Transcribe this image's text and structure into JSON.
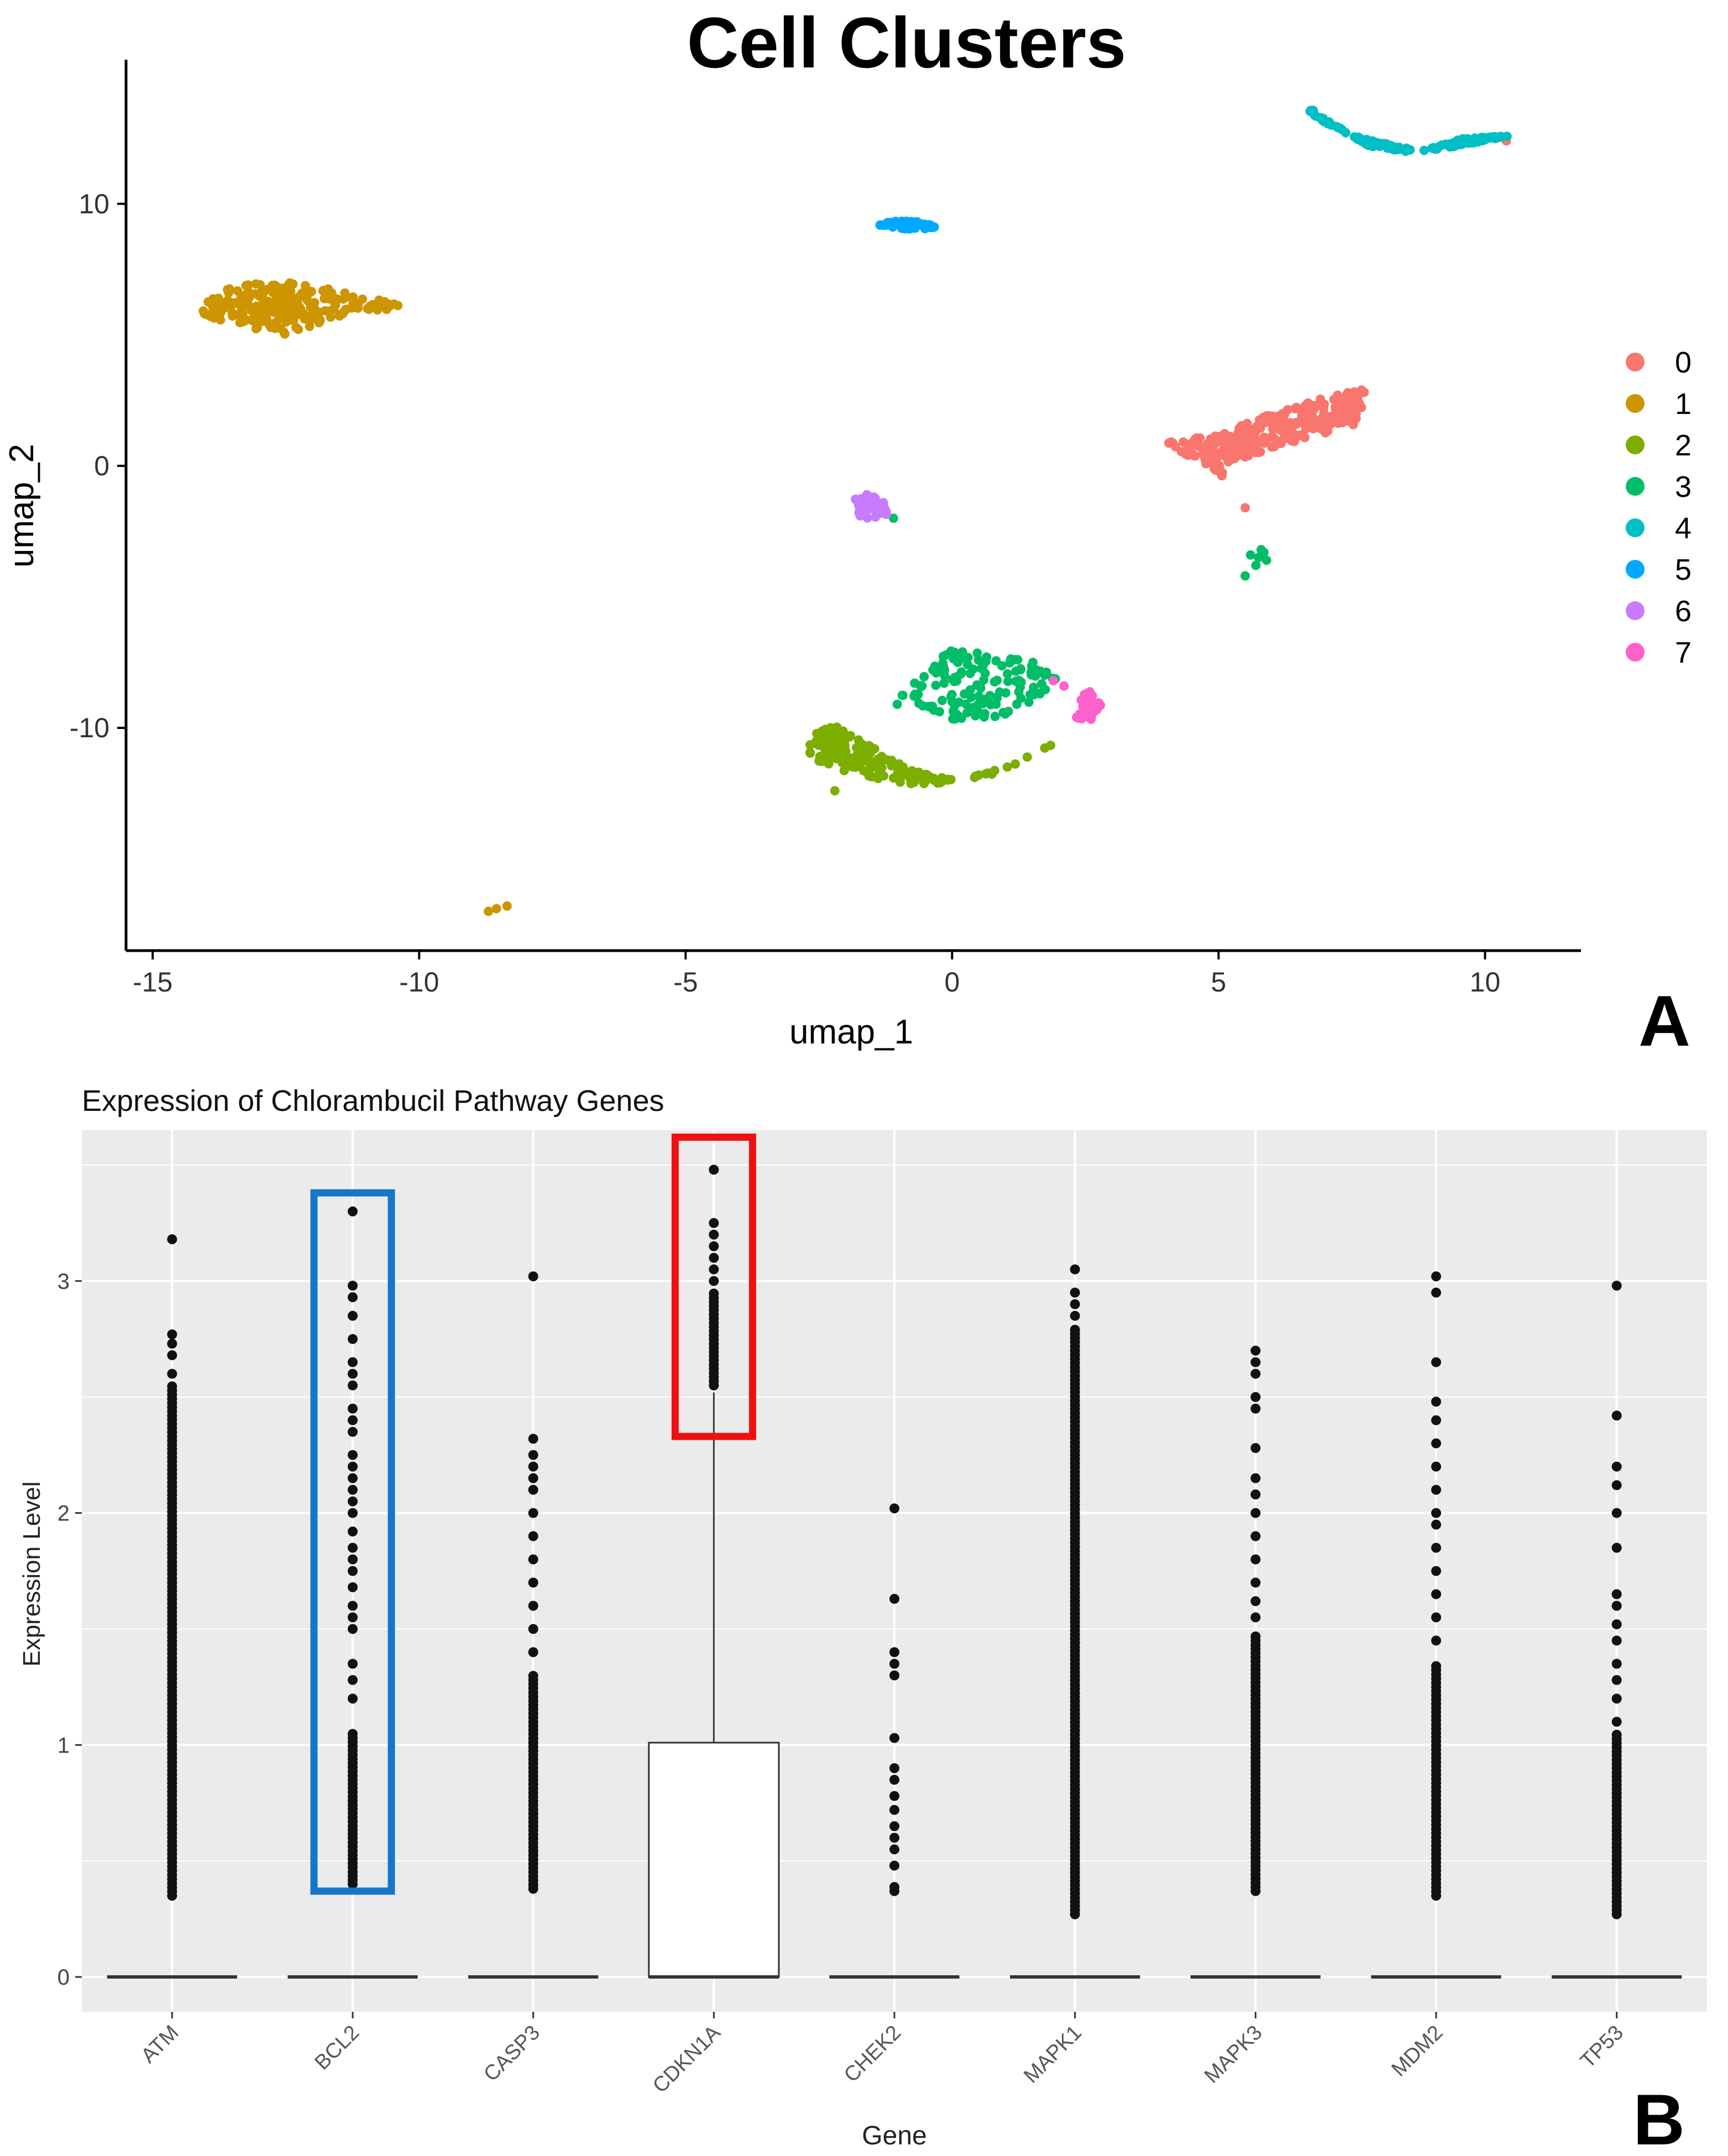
{
  "chart_data": [
    {
      "type": "scatter",
      "panel": "A",
      "title": "Cell Clusters",
      "xlabel": "umap_1",
      "ylabel": "umap_2",
      "xlim": [
        -15.5,
        11.8
      ],
      "ylim": [
        -18.5,
        15.5
      ],
      "xticks": [
        -15,
        -10,
        -5,
        0,
        5,
        10
      ],
      "yticks": [
        -10,
        0,
        10
      ],
      "grid": false,
      "legend_position": "right",
      "legend": [
        "0",
        "1",
        "2",
        "3",
        "4",
        "5",
        "6",
        "7"
      ],
      "clusters": [
        {
          "name": "0",
          "color": "#F8766D",
          "n": 280,
          "shape": [
            [
              4.0,
              0.9
            ],
            [
              5.0,
              1.2
            ],
            [
              6.0,
              2.0
            ],
            [
              7.0,
              2.6
            ],
            [
              7.8,
              3.0
            ],
            [
              7.6,
              1.6
            ],
            [
              6.2,
              0.8
            ],
            [
              5.0,
              0.0
            ],
            [
              5.3,
              -0.8
            ],
            [
              4.5,
              0.3
            ]
          ],
          "extra": [
            [
              8.1,
              12.3
            ],
            [
              10.4,
              12.4
            ],
            [
              5.5,
              -1.6
            ]
          ]
        },
        {
          "name": "1",
          "color": "#CD9600",
          "n": 220,
          "shape": [
            [
              -14.2,
              6.0
            ],
            [
              -13.4,
              7.0
            ],
            [
              -12.0,
              7.0
            ],
            [
              -11.0,
              6.4
            ],
            [
              -10.0,
              6.1
            ],
            [
              -11.2,
              5.8
            ],
            [
              -12.5,
              5.0
            ],
            [
              -13.8,
              5.5
            ]
          ],
          "extra": [
            [
              -8.55,
              -16.9
            ],
            [
              -8.35,
              -16.8
            ],
            [
              -8.7,
              -17.0
            ]
          ]
        },
        {
          "name": "2",
          "color": "#7CAE00",
          "n": 170,
          "shape": [
            [
              -2.8,
              -10.6
            ],
            [
              -2.3,
              -9.8
            ],
            [
              -1.6,
              -10.6
            ],
            [
              -0.8,
              -11.6
            ],
            [
              0.2,
              -12.0
            ],
            [
              1.2,
              -11.3
            ],
            [
              2.2,
              -10.3
            ],
            [
              0.8,
              -11.8
            ],
            [
              -0.6,
              -12.2
            ],
            [
              -1.8,
              -11.8
            ],
            [
              -2.6,
              -11.2
            ]
          ],
          "extra": [
            [
              -2.2,
              -12.4
            ]
          ]
        },
        {
          "name": "3",
          "color": "#00BE67",
          "n": 140,
          "shape": [
            [
              -1.1,
              -9.1
            ],
            [
              -0.6,
              -7.8
            ],
            [
              0.0,
              -7.0
            ],
            [
              1.0,
              -7.3
            ],
            [
              1.6,
              -7.4
            ],
            [
              2.0,
              -8.2
            ],
            [
              1.2,
              -9.5
            ],
            [
              0.2,
              -9.8
            ],
            [
              -0.5,
              -9.3
            ]
          ],
          "extra": [
            [
              5.6,
              -3.4
            ],
            [
              5.8,
              -3.2
            ],
            [
              5.9,
              -3.6
            ],
            [
              5.7,
              -3.8
            ],
            [
              5.5,
              -4.2
            ],
            [
              5.75,
              -3.5
            ],
            [
              5.85,
              -3.3
            ],
            [
              -1.1,
              -2.0
            ]
          ]
        },
        {
          "name": "4",
          "color": "#00BFC4",
          "n": 150,
          "shape": [
            [
              6.6,
              13.8
            ],
            [
              7.2,
              13.0
            ],
            [
              7.8,
              12.2
            ],
            [
              8.5,
              12.0
            ],
            [
              9.2,
              12.1
            ],
            [
              10.0,
              12.4
            ],
            [
              10.5,
              12.6
            ],
            [
              9.6,
              12.5
            ],
            [
              8.8,
              12.0
            ],
            [
              7.5,
              12.6
            ],
            [
              6.8,
              13.3
            ]
          ],
          "extra": []
        },
        {
          "name": "5",
          "color": "#00A9FF",
          "n": 60,
          "shape": [
            [
              -1.4,
              9.2
            ],
            [
              -1.0,
              9.4
            ],
            [
              -0.6,
              9.3
            ],
            [
              0.0,
              9.0
            ],
            [
              0.4,
              8.8
            ],
            [
              -0.2,
              9.1
            ],
            [
              -0.8,
              9.0
            ]
          ],
          "extra": []
        },
        {
          "name": "6",
          "color": "#C77CFF",
          "n": 45,
          "shape": [
            [
              -1.9,
              -1.2
            ],
            [
              -1.6,
              -1.1
            ],
            [
              -1.2,
              -1.3
            ],
            [
              -1.2,
              -1.9
            ],
            [
              -1.6,
              -2.1
            ],
            [
              -1.8,
              -1.8
            ]
          ],
          "extra": []
        },
        {
          "name": "7",
          "color": "#FF61CC",
          "n": 35,
          "shape": [
            [
              2.2,
              -8.7
            ],
            [
              2.6,
              -8.6
            ],
            [
              2.8,
              -9.1
            ],
            [
              2.6,
              -9.8
            ],
            [
              2.3,
              -9.6
            ],
            [
              2.4,
              -9.1
            ]
          ],
          "extra": [
            [
              1.9,
              -8.2
            ],
            [
              2.1,
              -8.4
            ]
          ]
        }
      ]
    },
    {
      "type": "box",
      "panel": "B",
      "title": "Expression of Chlorambucil Pathway Genes",
      "xlabel": "Gene",
      "ylabel": "Expression Level",
      "ylim": [
        -0.15,
        3.65
      ],
      "yticks": [
        0,
        1,
        2,
        3
      ],
      "grid": true,
      "categories": [
        "ATM",
        "BCL2",
        "CASP3",
        "CDKN1A",
        "CHEK2",
        "MAPK1",
        "MAPK3",
        "MDM2",
        "TP53"
      ],
      "boxes": [
        {
          "gene": "ATM",
          "q1": 0,
          "median": 0,
          "q3": 0,
          "whisker_high": 0
        },
        {
          "gene": "BCL2",
          "q1": 0,
          "median": 0,
          "q3": 0,
          "whisker_high": 0
        },
        {
          "gene": "CASP3",
          "q1": 0,
          "median": 0,
          "q3": 0,
          "whisker_high": 0
        },
        {
          "gene": "CDKN1A",
          "q1": 0,
          "median": 0,
          "q3": 1.01,
          "whisker_high": 2.52
        },
        {
          "gene": "CHEK2",
          "q1": 0,
          "median": 0,
          "q3": 0,
          "whisker_high": 0
        },
        {
          "gene": "MAPK1",
          "q1": 0,
          "median": 0,
          "q3": 0,
          "whisker_high": 0
        },
        {
          "gene": "MAPK3",
          "q1": 0,
          "median": 0,
          "q3": 0,
          "whisker_high": 0
        },
        {
          "gene": "MDM2",
          "q1": 0,
          "median": 0,
          "q3": 0,
          "whisker_high": 0
        },
        {
          "gene": "TP53",
          "q1": 0,
          "median": 0,
          "q3": 0,
          "whisker_high": 0
        }
      ],
      "outlier_ranges": [
        {
          "gene": "ATM",
          "min": 0.35,
          "dense_max": 2.55,
          "extra": [
            2.6,
            2.68,
            2.73,
            2.77,
            3.18
          ]
        },
        {
          "gene": "BCL2",
          "min": 0.4,
          "dense_max": 1.05,
          "extra": [
            1.2,
            1.28,
            1.35,
            1.5,
            1.55,
            1.6,
            1.68,
            1.75,
            1.8,
            1.85,
            1.92,
            2.0,
            2.05,
            2.1,
            2.15,
            2.2,
            2.25,
            2.35,
            2.4,
            2.45,
            2.55,
            2.6,
            2.65,
            2.75,
            2.85,
            2.93,
            2.98,
            3.3
          ]
        },
        {
          "gene": "CASP3",
          "min": 0.38,
          "dense_max": 1.3,
          "extra": [
            1.4,
            1.5,
            1.6,
            1.7,
            1.8,
            1.9,
            2.0,
            2.1,
            2.15,
            2.2,
            2.25,
            2.32,
            3.02
          ]
        },
        {
          "gene": "CDKN1A",
          "min": 2.55,
          "dense_max": 2.95,
          "extra": [
            3.0,
            3.05,
            3.1,
            3.15,
            3.2,
            3.25,
            3.48
          ]
        },
        {
          "gene": "CHEK2",
          "min": 0.37,
          "dense_max": 0.4,
          "extra": [
            0.48,
            0.55,
            0.6,
            0.65,
            0.72,
            0.78,
            0.85,
            0.9,
            1.03,
            1.3,
            1.35,
            1.4,
            1.63,
            2.02
          ]
        },
        {
          "gene": "MAPK1",
          "min": 0.27,
          "dense_max": 2.8,
          "extra": [
            2.85,
            2.9,
            2.95,
            3.05
          ]
        },
        {
          "gene": "MAPK3",
          "min": 0.37,
          "dense_max": 1.48,
          "extra": [
            1.55,
            1.62,
            1.7,
            1.8,
            1.9,
            2.0,
            2.08,
            2.15,
            2.28,
            2.45,
            2.5,
            2.6,
            2.65,
            2.7
          ]
        },
        {
          "gene": "MDM2",
          "min": 0.35,
          "dense_max": 1.35,
          "extra": [
            1.45,
            1.55,
            1.65,
            1.75,
            1.85,
            1.95,
            2.0,
            2.1,
            2.2,
            2.3,
            2.4,
            2.48,
            2.65,
            2.95,
            3.02
          ]
        },
        {
          "gene": "TP53",
          "min": 0.27,
          "dense_max": 1.05,
          "extra": [
            1.1,
            1.2,
            1.28,
            1.35,
            1.45,
            1.52,
            1.6,
            1.65,
            1.85,
            2.0,
            2.12,
            2.2,
            2.42,
            2.98
          ]
        }
      ],
      "highlight_boxes": [
        {
          "gene": "BCL2",
          "color": "#1677C9",
          "y_from": 0.37,
          "y_to": 3.38
        },
        {
          "gene": "CDKN1A",
          "color": "#EE1111",
          "y_from": 2.33,
          "y_to": 3.62
        }
      ]
    }
  ],
  "panel_labels": {
    "a": "A",
    "b": "B"
  }
}
